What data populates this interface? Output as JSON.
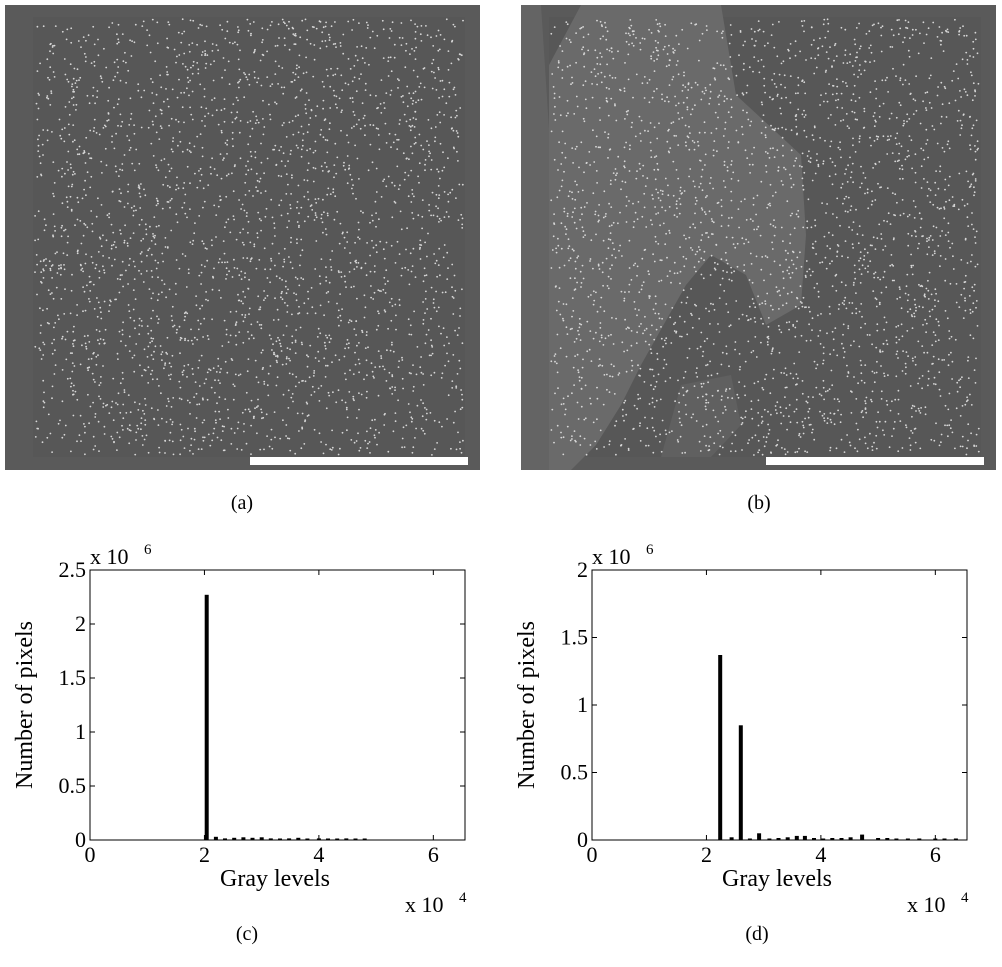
{
  "captions": {
    "a": "(a)",
    "b": "(b)",
    "c": "(c)",
    "d": "(d)"
  },
  "colors": {
    "image_border": "#5a5a5a",
    "image_field": "#575757",
    "bright_region": "#6a6a6a",
    "particle": "#d8d8d8",
    "scale_bar": "#ffffff",
    "bar": "#000000"
  },
  "chart_data": [
    {
      "type": "bar",
      "panel": "c",
      "title": "",
      "xlabel": "Gray levels",
      "ylabel": "Number of pixels",
      "x_multiplier": "x 10",
      "x_exponent": "4",
      "y_multiplier": "x 10",
      "y_exponent": "6",
      "xlim": [
        0,
        6.5535
      ],
      "ylim": [
        0,
        2.5
      ],
      "xticks": [
        0,
        2,
        4,
        6
      ],
      "yticks": [
        0,
        0.5,
        1,
        1.5,
        2,
        2.5
      ],
      "xtick_labels": [
        "0",
        "2",
        "4",
        "6"
      ],
      "ytick_labels": [
        "0",
        "0.5",
        "1",
        "1.5",
        "2",
        "2.5"
      ],
      "bars": [
        {
          "x": 2.04,
          "y": 2.27
        },
        {
          "x": 2.2,
          "y": 0.03
        },
        {
          "x": 2.36,
          "y": 0.015
        },
        {
          "x": 2.52,
          "y": 0.02
        },
        {
          "x": 2.68,
          "y": 0.025
        },
        {
          "x": 2.84,
          "y": 0.02
        },
        {
          "x": 3.0,
          "y": 0.025
        },
        {
          "x": 3.16,
          "y": 0.015
        },
        {
          "x": 3.32,
          "y": 0.01
        },
        {
          "x": 3.48,
          "y": 0.015
        },
        {
          "x": 3.64,
          "y": 0.02
        },
        {
          "x": 3.8,
          "y": 0.01
        },
        {
          "x": 4.0,
          "y": 0.015
        },
        {
          "x": 4.16,
          "y": 0.01
        },
        {
          "x": 4.32,
          "y": 0.01
        },
        {
          "x": 4.48,
          "y": 0.015
        },
        {
          "x": 4.64,
          "y": 0.01
        },
        {
          "x": 4.8,
          "y": 0.01
        }
      ]
    },
    {
      "type": "bar",
      "panel": "d",
      "title": "",
      "xlabel": "Gray levels",
      "ylabel": "Number of pixels",
      "x_multiplier": "x 10",
      "x_exponent": "4",
      "y_multiplier": "x 10",
      "y_exponent": "6",
      "xlim": [
        0,
        6.5535
      ],
      "ylim": [
        0,
        2
      ],
      "xticks": [
        0,
        2,
        4,
        6
      ],
      "yticks": [
        0,
        0.5,
        1,
        1.5,
        2
      ],
      "xtick_labels": [
        "0",
        "2",
        "4",
        "6"
      ],
      "ytick_labels": [
        "0",
        "0.5",
        "1",
        "1.5",
        "2"
      ],
      "bars": [
        {
          "x": 2.24,
          "y": 1.37
        },
        {
          "x": 2.44,
          "y": 0.02
        },
        {
          "x": 2.6,
          "y": 0.85
        },
        {
          "x": 2.76,
          "y": 0.01
        },
        {
          "x": 2.92,
          "y": 0.05
        },
        {
          "x": 3.1,
          "y": 0.01
        },
        {
          "x": 3.26,
          "y": 0.015
        },
        {
          "x": 3.42,
          "y": 0.02
        },
        {
          "x": 3.58,
          "y": 0.03
        },
        {
          "x": 3.72,
          "y": 0.03
        },
        {
          "x": 3.88,
          "y": 0.015
        },
        {
          "x": 4.04,
          "y": 0.01
        },
        {
          "x": 4.2,
          "y": 0.015
        },
        {
          "x": 4.36,
          "y": 0.015
        },
        {
          "x": 4.52,
          "y": 0.02
        },
        {
          "x": 4.72,
          "y": 0.04
        },
        {
          "x": 5.0,
          "y": 0.015
        },
        {
          "x": 5.16,
          "y": 0.015
        },
        {
          "x": 5.32,
          "y": 0.01
        },
        {
          "x": 5.52,
          "y": 0.01
        },
        {
          "x": 5.72,
          "y": 0.01
        },
        {
          "x": 6.0,
          "y": 0.005
        },
        {
          "x": 6.16,
          "y": 0.01
        },
        {
          "x": 6.36,
          "y": 0.01
        }
      ]
    }
  ]
}
